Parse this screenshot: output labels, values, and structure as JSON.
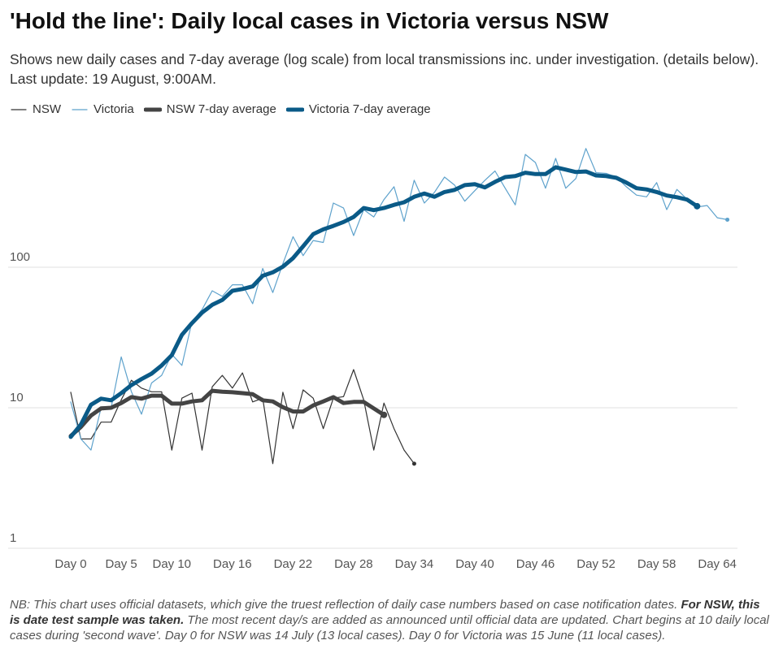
{
  "chart_data": {
    "type": "line",
    "title": "'Hold the line': Daily local cases in Victoria versus NSW",
    "subtitle": "Shows new daily cases and 7-day average (log scale) from local transmissions inc. under investigation. (details below). Last update: 19 August, 9:00AM.",
    "x": [
      0,
      1,
      2,
      3,
      4,
      5,
      6,
      7,
      8,
      9,
      10,
      11,
      12,
      13,
      14,
      15,
      16,
      17,
      18,
      19,
      20,
      21,
      22,
      23,
      24,
      25,
      26,
      27,
      28,
      29,
      30,
      31,
      32,
      33,
      34,
      35,
      36,
      37,
      38,
      39,
      40,
      41,
      42,
      43,
      44,
      45,
      46,
      47,
      48,
      49,
      50,
      51,
      52,
      53,
      54,
      55,
      56,
      57,
      58,
      59,
      60,
      61,
      62,
      63,
      64,
      65
    ],
    "xlim": [
      -6.2,
      66
    ],
    "xticks": [
      {
        "value": 0,
        "label": "Day 0"
      },
      {
        "value": 5,
        "label": "Day 5"
      },
      {
        "value": 10,
        "label": "Day 10"
      },
      {
        "value": 16,
        "label": "Day 16"
      },
      {
        "value": 22,
        "label": "Day 22"
      },
      {
        "value": 28,
        "label": "Day 28"
      },
      {
        "value": 34,
        "label": "Day 34"
      },
      {
        "value": 40,
        "label": "Day 40"
      },
      {
        "value": 46,
        "label": "Day 46"
      },
      {
        "value": 52,
        "label": "Day 52"
      },
      {
        "value": 58,
        "label": "Day 58"
      },
      {
        "value": 64,
        "label": "Day 64"
      }
    ],
    "ylim": [
      1,
      1000
    ],
    "yticks": [
      1,
      10,
      100
    ],
    "log_scale": true,
    "grid": true,
    "series": [
      {
        "name": "NSW",
        "color": "#333333",
        "width": 1.2,
        "values": [
          12.9,
          6,
          6,
          7.9,
          7.9,
          11.4,
          15.7,
          13.8,
          13,
          13,
          5,
          11.7,
          12.7,
          5,
          14.1,
          17,
          13.8,
          17.7,
          11,
          11.7,
          4,
          12.9,
          7.1,
          13.4,
          11.7,
          7.1,
          11.7,
          12,
          18.7,
          11.4,
          5,
          10.8,
          7.1,
          5,
          4,
          null,
          null,
          null,
          null,
          null,
          null,
          null,
          null,
          null,
          null,
          null,
          null,
          null,
          null,
          null,
          null,
          null,
          null,
          null,
          null,
          null,
          null,
          null,
          null,
          null,
          null,
          null,
          null,
          null,
          null,
          null
        ]
      },
      {
        "name": "Victoria",
        "color": "#5ea2cc",
        "width": 1.2,
        "values": [
          11,
          6,
          5,
          10,
          10,
          23,
          13,
          9,
          15,
          17,
          24,
          20,
          41,
          50,
          68,
          62,
          75,
          75,
          55,
          98,
          66,
          106,
          165,
          121,
          155,
          150,
          286,
          264,
          168,
          257,
          228,
          303,
          374,
          212,
          416,
          286,
          341,
          438,
          384,
          295,
          351,
          416,
          484,
          365,
          278,
          635,
          556,
          365,
          595,
          365,
          428,
          700,
          471,
          465,
          438,
          374,
          326,
          317,
          400,
          257,
          358,
          305,
          268,
          275,
          225,
          218
        ]
      },
      {
        "name": "NSW 7-day average",
        "color": "#444444",
        "width": 5,
        "values": [
          6.3,
          7.3,
          8.8,
          9.9,
          10,
          10.8,
          11.9,
          11.6,
          12.2,
          12.2,
          10.7,
          10.7,
          11.1,
          11.3,
          13.2,
          13,
          12.9,
          12.7,
          12.5,
          11.3,
          11.1,
          10.1,
          9.4,
          9.4,
          10.4,
          11.1,
          11.9,
          10.8,
          11,
          11,
          9.9,
          8.9,
          null,
          null,
          null,
          null,
          null,
          null,
          null,
          null,
          null,
          null,
          null,
          null,
          null,
          null,
          null,
          null,
          null,
          null,
          null,
          null,
          null,
          null,
          null,
          null,
          null,
          null,
          null,
          null,
          null,
          null,
          null,
          null,
          null,
          null
        ]
      },
      {
        "name": "Victoria 7-day average",
        "color": "#0a5a87",
        "width": 5,
        "values": [
          6.2,
          7.6,
          10.5,
          11.6,
          11.3,
          12.7,
          14.5,
          16,
          17.5,
          20,
          23.7,
          33,
          40,
          47.5,
          54,
          58.5,
          68,
          70,
          73,
          87,
          92,
          101,
          116,
          141,
          172,
          186,
          197,
          210,
          228,
          264,
          255,
          264,
          278,
          290,
          317,
          335,
          317,
          343,
          355,
          384,
          390,
          370,
          405,
          438,
          445,
          471,
          460,
          460,
          515,
          495,
          476,
          480,
          450,
          445,
          433,
          400,
          365,
          358,
          343,
          324,
          315,
          303,
          272,
          null,
          null,
          null
        ]
      }
    ]
  },
  "notes": {
    "parts": [
      {
        "text": "NB: This chart uses official datasets, which give the truest reflection of daily case numbers based on case notification dates. ",
        "bold": false
      },
      {
        "text": "For NSW, this is date test sample was taken.",
        "bold": true
      },
      {
        "text": " The most recent day/s are added as announced until official data are updated. Chart begins at 10 daily local cases during 'second wave'. Day 0 for NSW was 14 July (13 local cases). Day 0 for Victoria was 15 June (11 local cases).",
        "bold": false
      }
    ]
  }
}
